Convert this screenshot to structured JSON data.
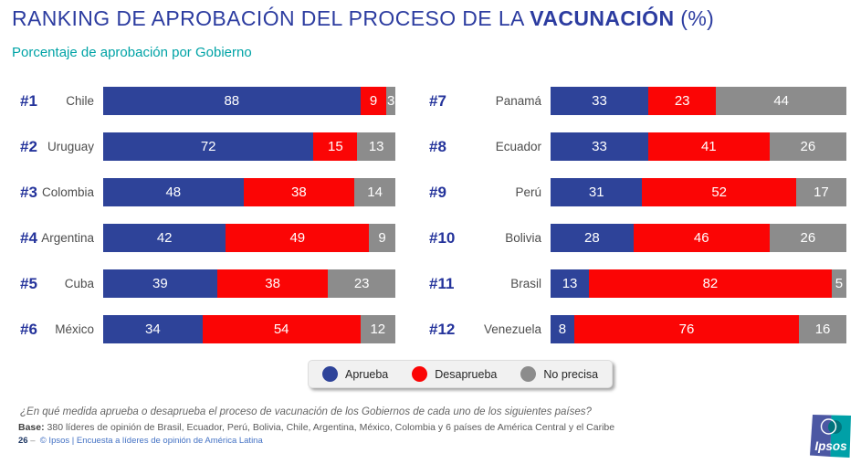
{
  "title": {
    "prefix": "RANKING DE APROBACIÓN DEL PROCESO DE LA ",
    "bold": "VACUNACIÓN",
    "suffix": " (%)"
  },
  "subtitle": "Porcentaje de aprobación por Gobierno",
  "colors": {
    "aprueba": "#2E4399",
    "desaprueba": "#FB0505",
    "no_precisa": "#8C8C8C",
    "title_blue": "#2C3CA0",
    "rank_blue": "#24339B",
    "subtitle_teal": "#00A3A6",
    "logo_blue": "#4C58A3",
    "logo_teal": "#00A0A7"
  },
  "legend": {
    "items": [
      {
        "label": "Aprueba",
        "color": "#2E4399"
      },
      {
        "label": "Desaprueba",
        "color": "#FB0505"
      },
      {
        "label": "No precisa",
        "color": "#8C8C8C"
      }
    ]
  },
  "ranking": [
    {
      "rank": "#1",
      "country": "Chile",
      "aprueba": 88,
      "desaprueba": 9,
      "no_precisa": 3
    },
    {
      "rank": "#2",
      "country": "Uruguay",
      "aprueba": 72,
      "desaprueba": 15,
      "no_precisa": 13
    },
    {
      "rank": "#3",
      "country": "Colombia",
      "aprueba": 48,
      "desaprueba": 38,
      "no_precisa": 14
    },
    {
      "rank": "#4",
      "country": "Argentina",
      "aprueba": 42,
      "desaprueba": 49,
      "no_precisa": 9
    },
    {
      "rank": "#5",
      "country": "Cuba",
      "aprueba": 39,
      "desaprueba": 38,
      "no_precisa": 23
    },
    {
      "rank": "#6",
      "country": "México",
      "aprueba": 34,
      "desaprueba": 54,
      "no_precisa": 12
    },
    {
      "rank": "#7",
      "country": "Panamá",
      "aprueba": 33,
      "desaprueba": 23,
      "no_precisa": 44
    },
    {
      "rank": "#8",
      "country": "Ecuador",
      "aprueba": 33,
      "desaprueba": 41,
      "no_precisa": 26
    },
    {
      "rank": "#9",
      "country": "Perú",
      "aprueba": 31,
      "desaprueba": 52,
      "no_precisa": 17
    },
    {
      "rank": "#10",
      "country": "Bolivia",
      "aprueba": 28,
      "desaprueba": 46,
      "no_precisa": 26
    },
    {
      "rank": "#11",
      "country": "Brasil",
      "aprueba": 13,
      "desaprueba": 82,
      "no_precisa": 5
    },
    {
      "rank": "#12",
      "country": "Venezuela",
      "aprueba": 8,
      "desaprueba": 76,
      "no_precisa": 16
    }
  ],
  "footnotes": {
    "question": "¿En qué medida aprueba o desaprueba el proceso de vacunación de los Gobiernos de cada uno de los siguientes países?",
    "base_label": "Base:",
    "base_text": " 380 líderes de opinión de Brasil, Ecuador, Perú, Bolivia, Chile, Argentina, México, Colombia y 6 países de América Central y el Caribe",
    "page_number": "26",
    "page_sep": "–",
    "source": "© Ipsos | Encuesta a líderes de opinión de América Latina"
  },
  "logo": {
    "text": "Ipsos"
  },
  "chart_data": {
    "type": "bar",
    "orientation": "horizontal-stacked",
    "title": "RANKING DE APROBACIÓN DEL PROCESO DE LA VACUNACIÓN (%)",
    "subtitle": "Porcentaje de aprobación por Gobierno",
    "categories": [
      "Chile",
      "Uruguay",
      "Colombia",
      "Argentina",
      "Cuba",
      "México",
      "Panamá",
      "Ecuador",
      "Perú",
      "Bolivia",
      "Brasil",
      "Venezuela"
    ],
    "ranks": [
      "#1",
      "#2",
      "#3",
      "#4",
      "#5",
      "#6",
      "#7",
      "#8",
      "#9",
      "#10",
      "#11",
      "#12"
    ],
    "series": [
      {
        "name": "Aprueba",
        "color": "#2E4399",
        "values": [
          88,
          72,
          48,
          42,
          39,
          34,
          33,
          33,
          31,
          28,
          13,
          8
        ]
      },
      {
        "name": "Desaprueba",
        "color": "#FB0505",
        "values": [
          9,
          15,
          38,
          49,
          38,
          54,
          23,
          41,
          52,
          46,
          82,
          76
        ]
      },
      {
        "name": "No precisa",
        "color": "#8C8C8C",
        "values": [
          3,
          13,
          14,
          9,
          23,
          12,
          44,
          26,
          17,
          26,
          5,
          16
        ]
      }
    ],
    "xlim": [
      0,
      100
    ],
    "value_labels": "inside",
    "legend_position": "bottom-center",
    "layout": "two-columns-of-six"
  }
}
